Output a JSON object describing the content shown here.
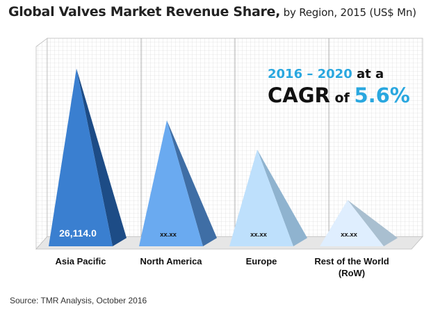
{
  "title": {
    "main": "Global Valves Market Revenue Share,",
    "sub": " by Region, 2015 (US$ Mn)"
  },
  "callout": {
    "years": "2016 – 2020",
    "at_a": " at a",
    "cagr_label": "CAGR",
    "of": " of ",
    "cagr_value": "5.6%"
  },
  "source": "Source: TMR Analysis, October 2016",
  "chart_data": {
    "type": "bar",
    "style": "3d-pyramid",
    "title": "Global Valves Market Revenue Share, by Region, 2015 (US$ Mn)",
    "categories": [
      "Asia Pacific",
      "North America",
      "Europe",
      "Rest of the World (RoW)"
    ],
    "category_lines": [
      [
        "Asia Pacific"
      ],
      [
        "North America"
      ],
      [
        "Europe"
      ],
      [
        "Rest of the World",
        "(RoW)"
      ]
    ],
    "data_labels": [
      "26,114.0",
      "xx.xx",
      "xx.xx",
      "xx.xx"
    ],
    "values": [
      26114.0,
      18500,
      14200,
      6800
    ],
    "ylim": [
      0,
      28000
    ],
    "grid": true,
    "legend": "none",
    "colors": {
      "front": [
        "#3a7fd0",
        "#6aaaf0",
        "#bee0fc",
        "#dfeefe"
      ],
      "side": [
        "#1d4c86",
        "#3f6ea5",
        "#8fb3cf",
        "#a9bfd0"
      ],
      "label_text": [
        "#ffffff",
        "#111111",
        "#111111",
        "#111111"
      ]
    }
  }
}
